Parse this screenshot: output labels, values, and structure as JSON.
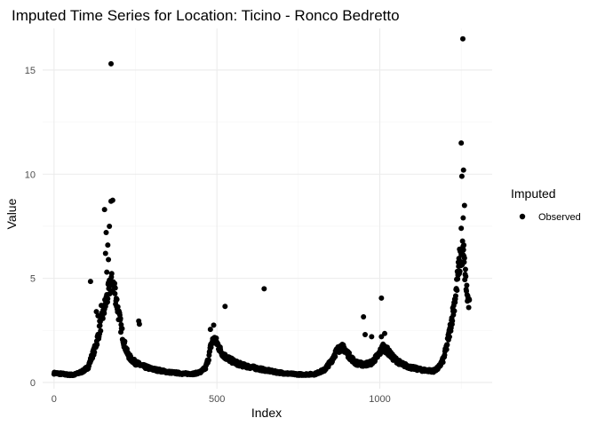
{
  "chart_data": {
    "type": "scatter",
    "title": "Imputed Time Series for Location: Ticino - Ronco Bedretto",
    "xlabel": "Index",
    "ylabel": "Value",
    "xlim": [
      -35,
      1345
    ],
    "ylim": [
      -0.3,
      17.0
    ],
    "x_ticks": [
      0,
      500,
      1000
    ],
    "y_ticks": [
      0,
      5,
      10,
      15
    ],
    "grid": true,
    "legend": {
      "title": "Imputed",
      "position": "right",
      "entries": [
        {
          "label": "Observed",
          "color": "#000000"
        }
      ]
    },
    "series": [
      {
        "name": "Observed",
        "color": "#000000",
        "anchors": [
          [
            0,
            0.45
          ],
          [
            20,
            0.42
          ],
          [
            40,
            0.38
          ],
          [
            60,
            0.36
          ],
          [
            75,
            0.45
          ],
          [
            90,
            0.55
          ],
          [
            105,
            0.75
          ],
          [
            115,
            1.2
          ],
          [
            125,
            1.6
          ],
          [
            135,
            2.2
          ],
          [
            145,
            2.9
          ],
          [
            155,
            3.6
          ],
          [
            165,
            4.2
          ],
          [
            175,
            4.8
          ],
          [
            185,
            4.6
          ],
          [
            195,
            3.6
          ],
          [
            205,
            2.7
          ],
          [
            215,
            1.9
          ],
          [
            225,
            1.4
          ],
          [
            235,
            1.15
          ],
          [
            250,
            0.95
          ],
          [
            270,
            0.8
          ],
          [
            300,
            0.65
          ],
          [
            350,
            0.5
          ],
          [
            400,
            0.42
          ],
          [
            430,
            0.42
          ],
          [
            450,
            0.5
          ],
          [
            465,
            0.7
          ],
          [
            475,
            1.2
          ],
          [
            482,
            1.8
          ],
          [
            490,
            2.1
          ],
          [
            500,
            1.9
          ],
          [
            512,
            1.5
          ],
          [
            525,
            1.25
          ],
          [
            545,
            1.05
          ],
          [
            565,
            0.9
          ],
          [
            585,
            0.8
          ],
          [
            610,
            0.72
          ],
          [
            640,
            0.62
          ],
          [
            680,
            0.5
          ],
          [
            720,
            0.42
          ],
          [
            760,
            0.38
          ],
          [
            800,
            0.4
          ],
          [
            830,
            0.6
          ],
          [
            850,
            1.0
          ],
          [
            865,
            1.45
          ],
          [
            880,
            1.7
          ],
          [
            893,
            1.6
          ],
          [
            905,
            1.3
          ],
          [
            925,
            0.95
          ],
          [
            950,
            0.85
          ],
          [
            975,
            0.95
          ],
          [
            995,
            1.3
          ],
          [
            1010,
            1.7
          ],
          [
            1022,
            1.55
          ],
          [
            1040,
            1.2
          ],
          [
            1065,
            0.9
          ],
          [
            1095,
            0.72
          ],
          [
            1130,
            0.6
          ],
          [
            1165,
            0.55
          ],
          [
            1180,
            0.7
          ],
          [
            1195,
            1.1
          ],
          [
            1205,
            1.7
          ],
          [
            1215,
            2.5
          ],
          [
            1225,
            3.4
          ],
          [
            1235,
            4.5
          ],
          [
            1245,
            5.8
          ],
          [
            1255,
            6.3
          ],
          [
            1262,
            5.2
          ],
          [
            1268,
            4.2
          ],
          [
            1275,
            3.6
          ]
        ],
        "outliers": [
          [
            175,
            15.3
          ],
          [
            1255,
            16.5
          ],
          [
            1250,
            11.5
          ],
          [
            1257,
            10.2
          ],
          [
            1252,
            9.9
          ],
          [
            180,
            8.75
          ],
          [
            175,
            8.7
          ],
          [
            155,
            8.3
          ],
          [
            1260,
            8.5
          ],
          [
            1256,
            7.9
          ],
          [
            160,
            7.2
          ],
          [
            170,
            7.5
          ],
          [
            1250,
            7.4
          ],
          [
            165,
            6.6
          ],
          [
            158,
            6.2
          ],
          [
            167,
            5.9
          ],
          [
            1258,
            6.6
          ],
          [
            1245,
            6.4
          ],
          [
            162,
            5.3
          ],
          [
            1240,
            5.2
          ],
          [
            112,
            4.85
          ],
          [
            645,
            4.5
          ],
          [
            525,
            3.65
          ],
          [
            1005,
            4.05
          ],
          [
            260,
            2.95
          ],
          [
            262,
            2.8
          ],
          [
            950,
            3.15
          ],
          [
            480,
            2.55
          ],
          [
            490,
            2.75
          ],
          [
            955,
            2.3
          ],
          [
            975,
            2.2
          ],
          [
            1005,
            2.2
          ],
          [
            1015,
            2.35
          ],
          [
            135,
            3.2
          ],
          [
            140,
            2.95
          ],
          [
            145,
            3.7
          ],
          [
            130,
            3.4
          ]
        ]
      }
    ]
  }
}
